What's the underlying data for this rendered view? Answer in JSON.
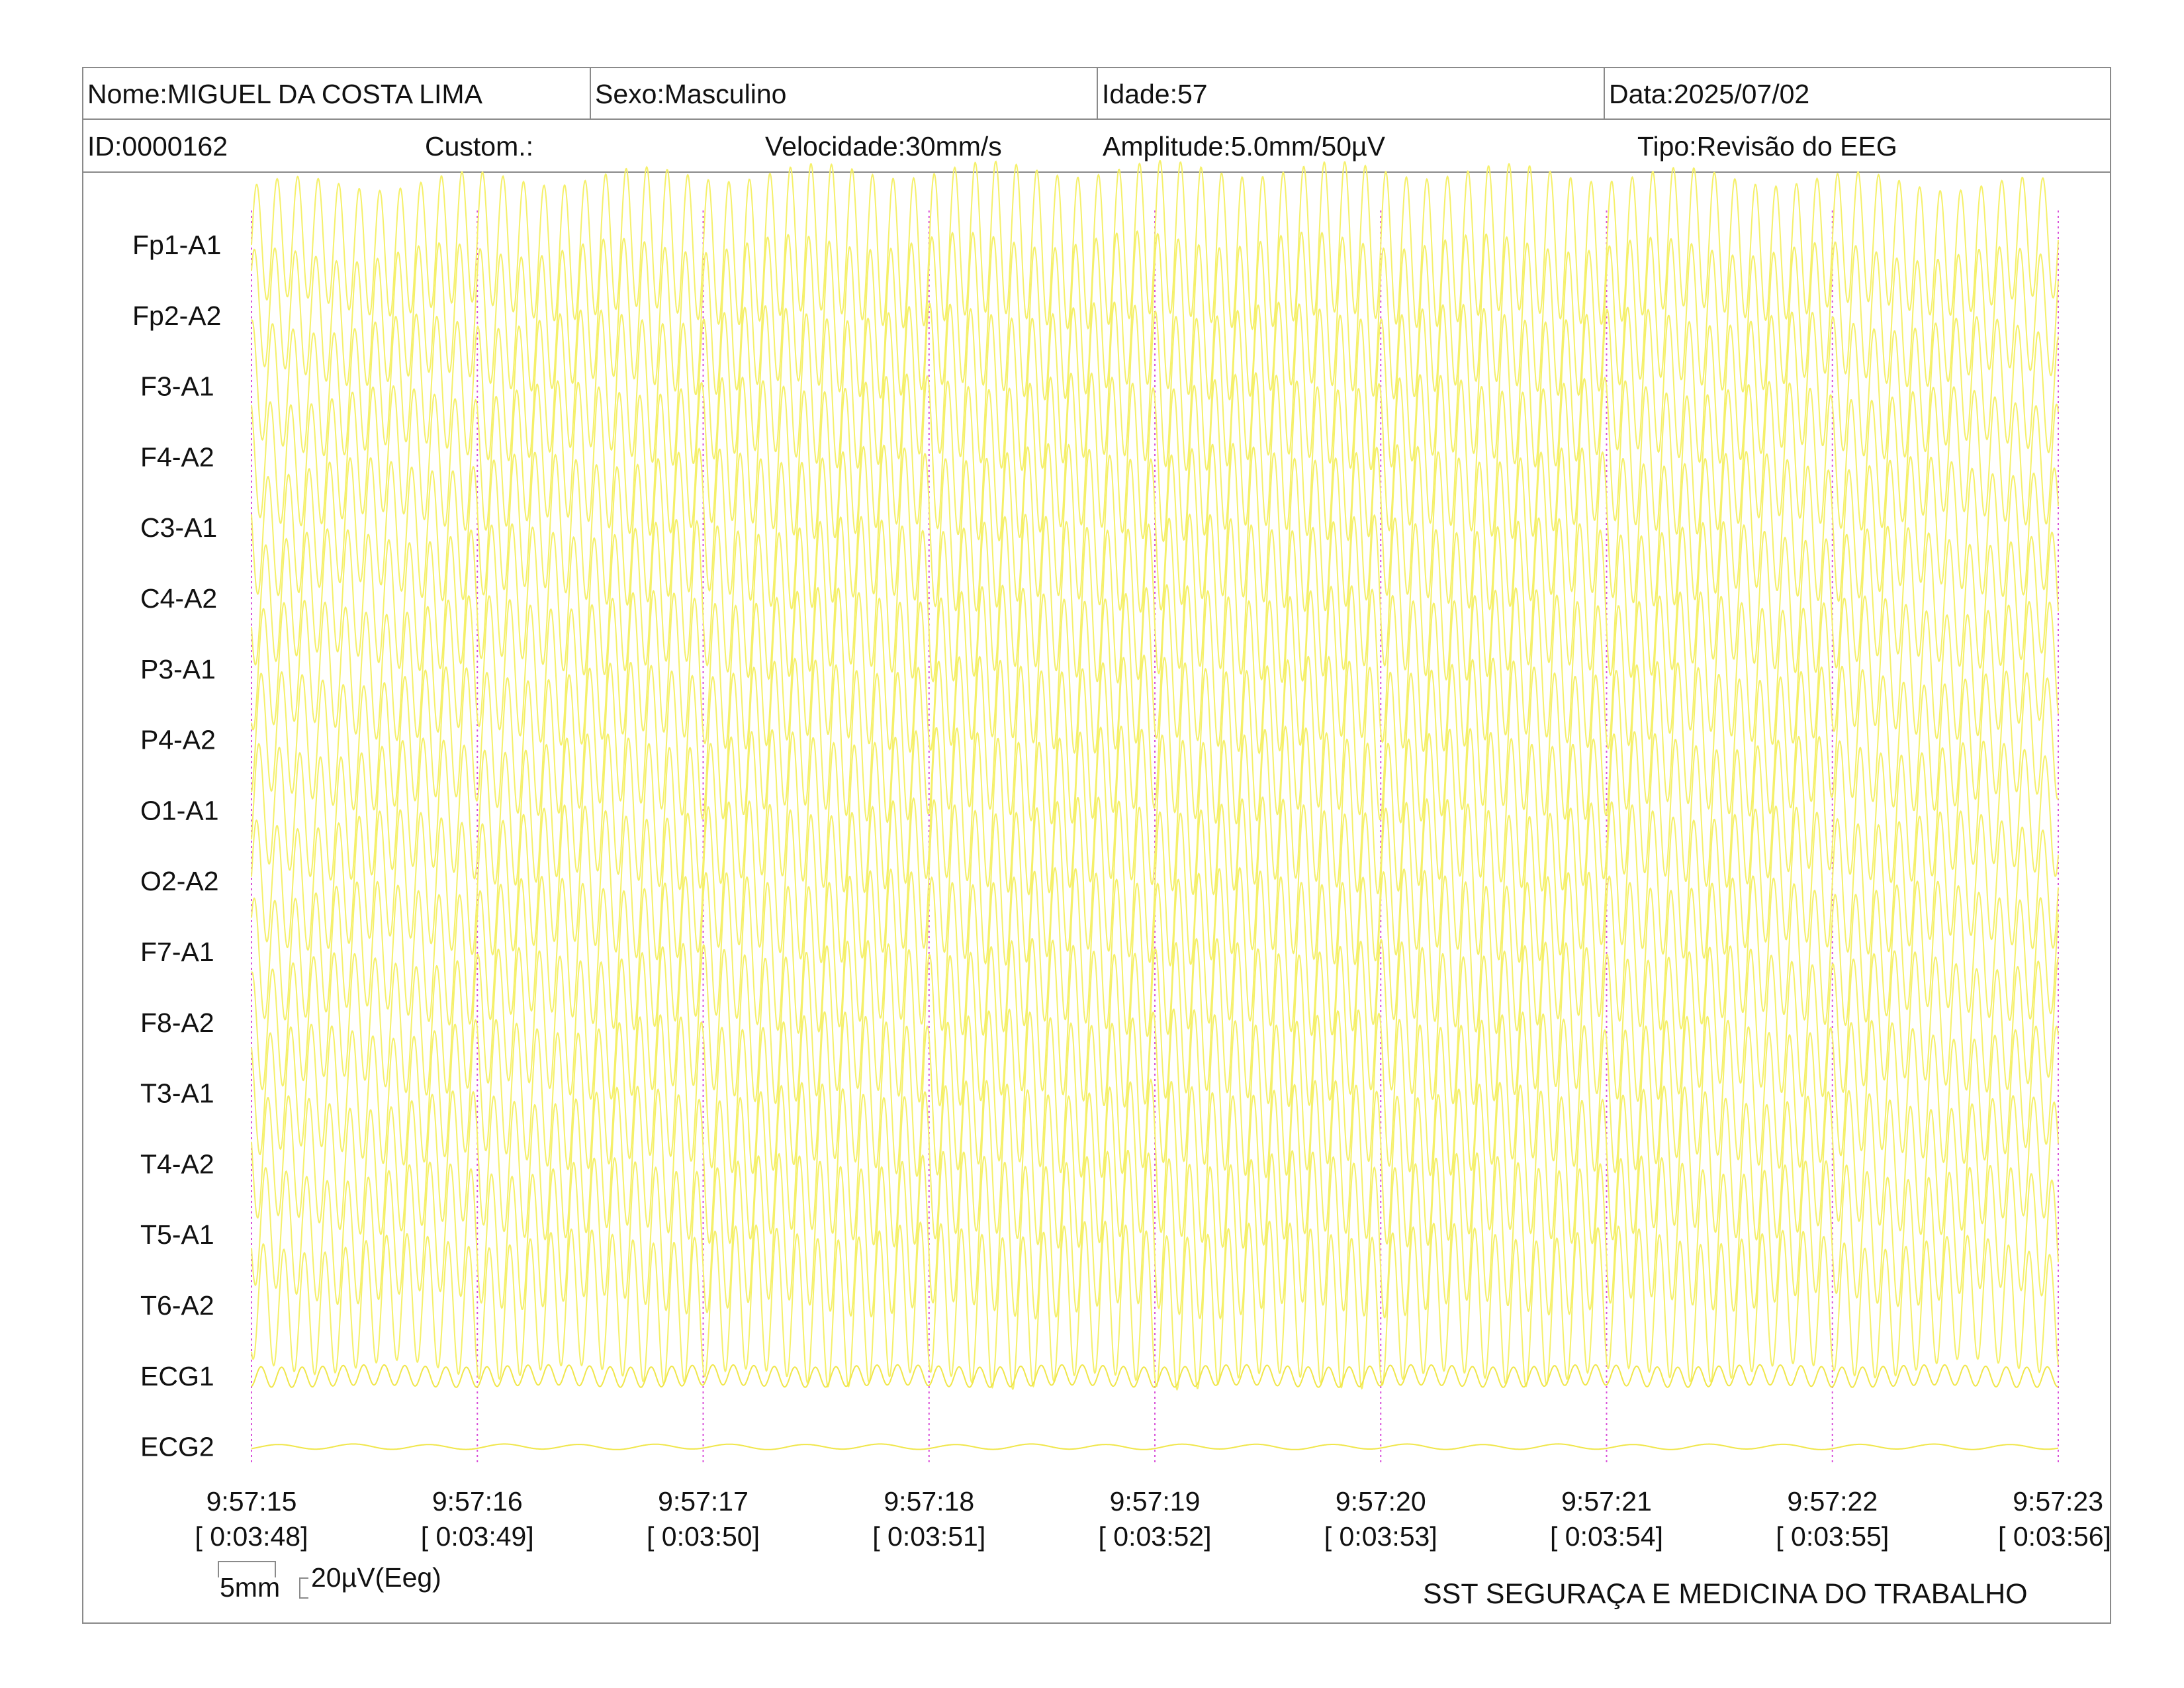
{
  "header": {
    "nome": "Nome:MIGUEL DA COSTA LIMA",
    "sexo": "Sexo:Masculino",
    "idade": "Idade:57",
    "data": "Data:2025/07/02",
    "id": "ID:0000162",
    "custom": "Custom.:",
    "velocidade": "Velocidade:30mm/s",
    "amplitude": "Amplitude:5.0mm/50µV",
    "tipo": "Tipo:Revisão do EEG"
  },
  "scale": {
    "mm": "5mm",
    "uv": "20µV(Eeg)"
  },
  "footer": "SST SEGURAÇA E MEDICINA DO TRABALHO",
  "colors": {
    "trace": "#f5f06a",
    "ecg_trace": "#f0e64a",
    "time_marker": "#d94fd9",
    "border": "#8a8a8a"
  },
  "chart_data": {
    "type": "line",
    "channels": [
      "Fp1-A1",
      "Fp2-A2",
      "F3-A1",
      "F4-A2",
      "C3-A1",
      "C4-A2",
      "P3-A1",
      "P4-A2",
      "O1-A1",
      "O2-A2",
      "F7-A1",
      "F8-A2",
      "T3-A1",
      "T4-A2",
      "T5-A1",
      "T6-A2",
      "ECG1",
      "ECG2"
    ],
    "time_ticks": [
      {
        "time": "9:57:15",
        "elapsed": "[ 0:03:48]"
      },
      {
        "time": "9:57:16",
        "elapsed": "[ 0:03:49]"
      },
      {
        "time": "9:57:17",
        "elapsed": "[ 0:03:50]"
      },
      {
        "time": "9:57:18",
        "elapsed": "[ 0:03:51]"
      },
      {
        "time": "9:57:19",
        "elapsed": "[ 0:03:52]"
      },
      {
        "time": "9:57:20",
        "elapsed": "[ 0:03:53]"
      },
      {
        "time": "9:57:21",
        "elapsed": "[ 0:03:54]"
      },
      {
        "time": "9:57:22",
        "elapsed": "[ 0:03:55]"
      },
      {
        "time": "9:57:23",
        "elapsed": "[ 0:03:56]"
      }
    ],
    "x_range_seconds": [
      0,
      8
    ],
    "eeg_dominant_frequency_hz": 11,
    "eeg_amplitude_uv": 55,
    "ecg1_amplitude_uv": 8,
    "ecg2_amplitude_uv": 2,
    "grid": false
  }
}
